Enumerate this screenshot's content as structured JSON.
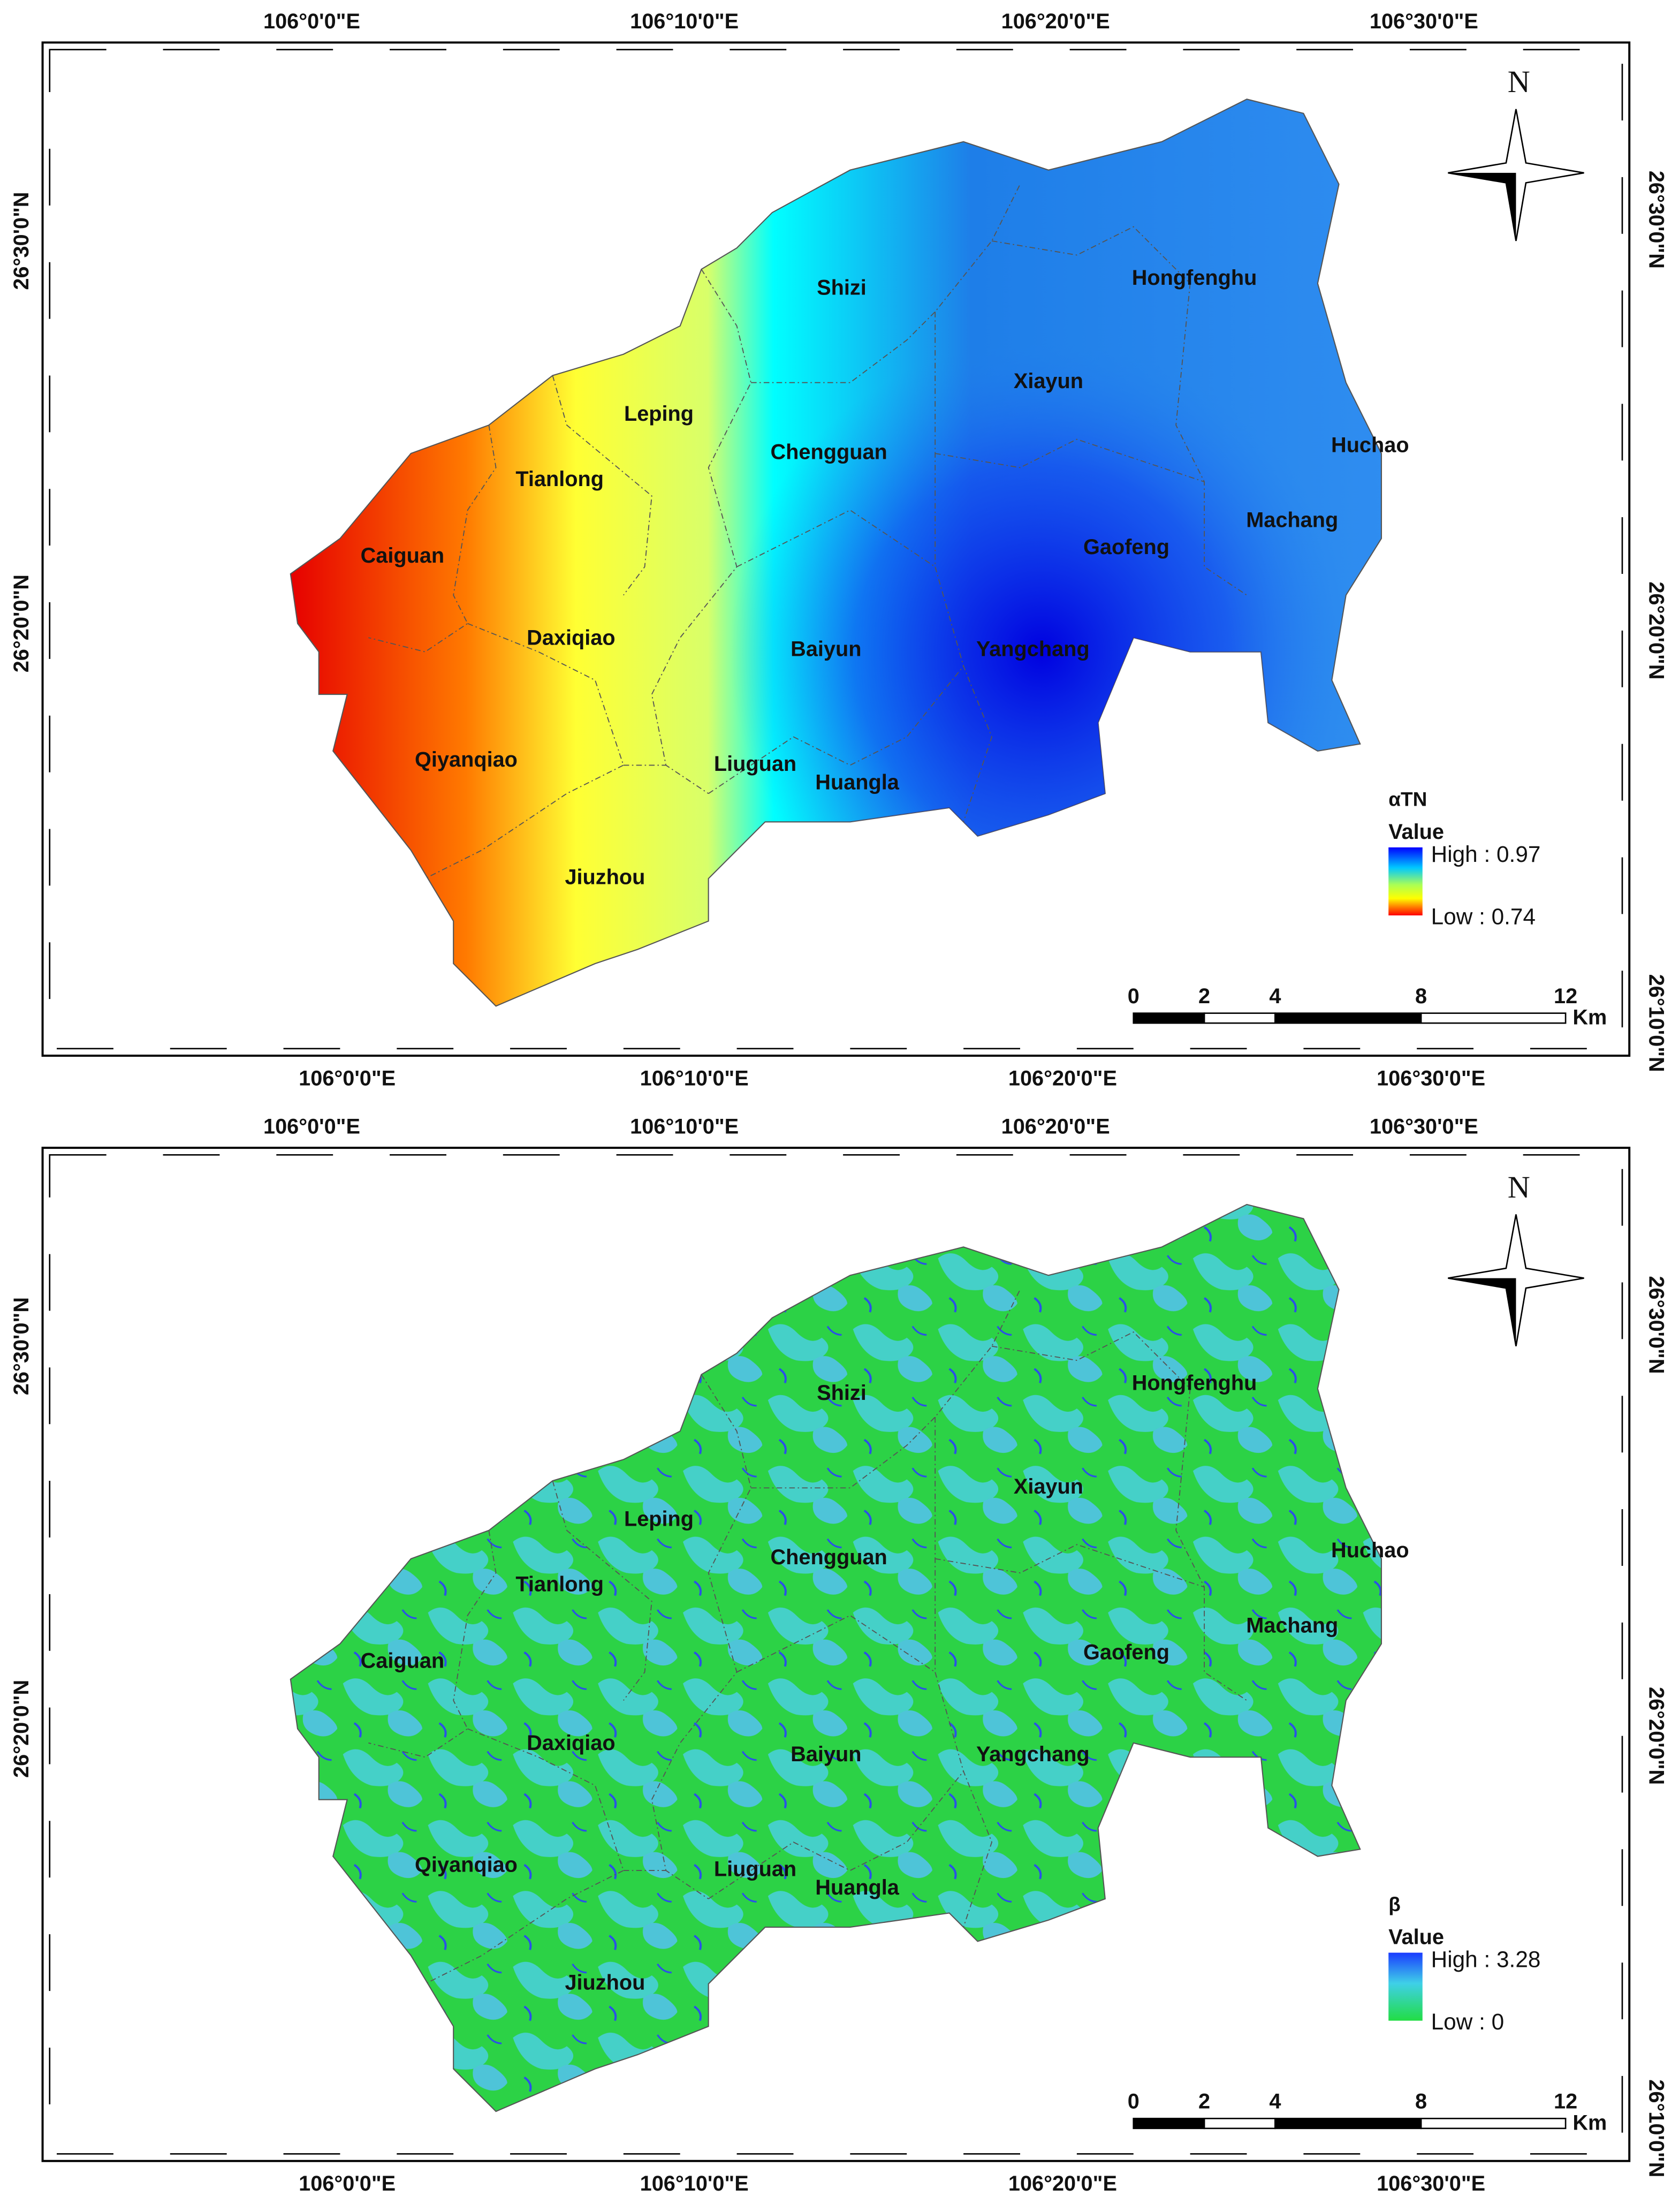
{
  "maps": [
    {
      "legend": {
        "title": "αTN",
        "value_label": "Value",
        "high": "High : 0.97",
        "low": "Low : 0.74"
      },
      "places": [
        "Shizi",
        "Hongfenghu",
        "Xiayun",
        "Leping",
        "Chengguan",
        "Huchao",
        "Tianlong",
        "Machang",
        "Caiguan",
        "Gaofeng",
        "Daxiqiao",
        "Baiyun",
        "Yangchang",
        "Qiyanqiao",
        "Liuguan",
        "Huangla",
        "Jiuzhou"
      ],
      "lon_labels": [
        "106°0'0\"E",
        "106°10'0\"E",
        "106°20'0\"E",
        "106°30'0\"E"
      ],
      "lat_labels": [
        "26°30'0\"N",
        "26°20'0\"N",
        "26°10'0\"N"
      ],
      "scale": {
        "ticks": [
          "0",
          "2",
          "4",
          "8",
          "12"
        ],
        "unit": "Km"
      },
      "north": "N"
    },
    {
      "legend": {
        "title": "β",
        "value_label": "Value",
        "high": "High : 3.28",
        "low": "Low : 0"
      },
      "places": [
        "Shizi",
        "Hongfenghu",
        "Xiayun",
        "Leping",
        "Chengguan",
        "Huchao",
        "Tianlong",
        "Machang",
        "Caiguan",
        "Gaofeng",
        "Daxiqiao",
        "Baiyun",
        "Yangchang",
        "Qiyanqiao",
        "Liuguan",
        "Huangla",
        "Jiuzhou"
      ],
      "lon_labels": [
        "106°0'0\"E",
        "106°10'0\"E",
        "106°20'0\"E",
        "106°30'0\"E"
      ],
      "lat_labels": [
        "26°30'0\"N",
        "26°20'0\"N",
        "26°10'0\"N"
      ],
      "scale": {
        "ticks": [
          "0",
          "2",
          "4",
          "8",
          "12"
        ],
        "unit": "Km"
      },
      "north": "N"
    }
  ]
}
